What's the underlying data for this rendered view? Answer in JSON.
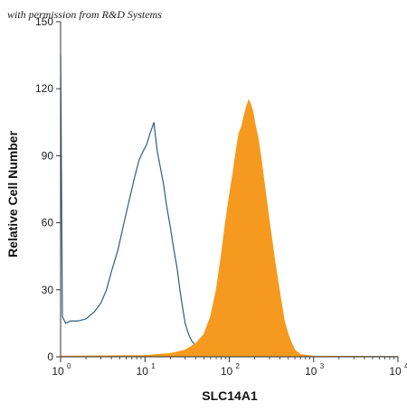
{
  "watermark": "with permission from R&D Systems",
  "chart_data": {
    "type": "area",
    "xlabel": "SLC14A1",
    "ylabel": "Relative Cell Number",
    "x_scale": "log",
    "xlim": [
      1,
      10000
    ],
    "ylim": [
      0,
      150
    ],
    "x_ticks": [
      {
        "base": "10",
        "exp": "0"
      },
      {
        "base": "10",
        "exp": "1"
      },
      {
        "base": "10",
        "exp": "2"
      },
      {
        "base": "10",
        "exp": "3"
      },
      {
        "base": "10",
        "exp": "4"
      }
    ],
    "y_ticks": [
      "0",
      "30",
      "60",
      "90",
      "120",
      "150"
    ],
    "series": [
      {
        "style": "outline",
        "color": "#2e5e7e",
        "x": [
          1.0,
          1.05,
          1.15,
          1.3,
          1.6,
          2.0,
          2.5,
          3.0,
          3.5,
          4.0,
          4.8,
          5.5,
          6.5,
          7.5,
          8.5,
          9.5,
          10.5,
          11.5,
          12.3,
          12.8,
          13.2,
          14.0,
          15.0,
          16.5,
          18.0,
          20.0,
          22.0,
          24.0,
          26.0,
          28.0,
          30.0,
          33.0,
          36.0,
          40.0,
          45.0,
          50.0,
          60.0,
          70.0,
          80.0,
          100.0,
          150.0,
          300.0,
          1000.0,
          10000.0
        ],
        "y": [
          135,
          18,
          15,
          16,
          16,
          17,
          20,
          24,
          30,
          38,
          48,
          58,
          70,
          80,
          88,
          92,
          95,
          100,
          103,
          105,
          100,
          92,
          86,
          78,
          68,
          58,
          48,
          40,
          30,
          22,
          15,
          10,
          7,
          5,
          3.5,
          2.5,
          1.8,
          1.3,
          1.0,
          0.8,
          0.5,
          0.3,
          0.2,
          0.1
        ]
      },
      {
        "style": "filled",
        "color": "#f59a1e",
        "x": [
          1.0,
          10.0,
          20.0,
          30.0,
          40.0,
          50.0,
          60.0,
          70.0,
          80.0,
          90.0,
          100.0,
          110.0,
          120.0,
          130.0,
          140.0,
          150.0,
          160.0,
          170.0,
          180.0,
          190.0,
          200.0,
          220.0,
          240.0,
          260.0,
          300.0,
          350.0,
          400.0,
          450.0,
          500.0,
          550.0,
          600.0,
          700.0,
          1000.0,
          10000.0
        ],
        "y": [
          0.3,
          0.6,
          1.5,
          3,
          6,
          10,
          18,
          30,
          45,
          60,
          72,
          82,
          92,
          100,
          103,
          108,
          112,
          115,
          113,
          110,
          105,
          98,
          88,
          78,
          60,
          42,
          28,
          16,
          10,
          6,
          3,
          1,
          0.3,
          0.1
        ]
      }
    ]
  }
}
